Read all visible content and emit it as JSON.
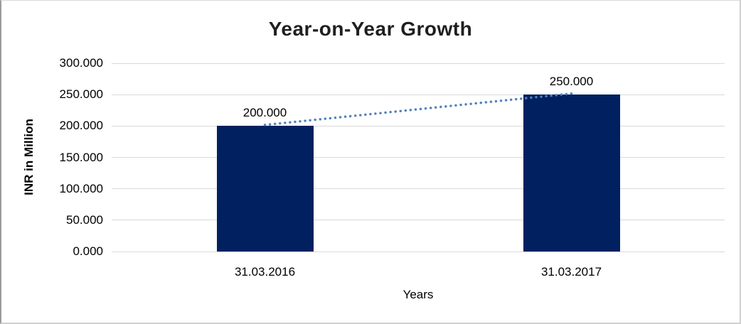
{
  "chart_data": {
    "type": "bar",
    "title": "Year-on-Year Growth",
    "xlabel": "Years",
    "ylabel": "INR in Million",
    "categories": [
      "31.03.2016",
      "31.03.2017"
    ],
    "values": [
      200000,
      250000
    ],
    "data_labels": [
      "200.000",
      "250.000"
    ],
    "y_ticks": [
      {
        "value": 0,
        "label": "0.000"
      },
      {
        "value": 50000,
        "label": "50.000"
      },
      {
        "value": 100000,
        "label": "100.000"
      },
      {
        "value": 150000,
        "label": "150.000"
      },
      {
        "value": 200000,
        "label": "200.000"
      },
      {
        "value": 250000,
        "label": "250.000"
      },
      {
        "value": 300000,
        "label": "300.000"
      }
    ],
    "ylim": [
      0,
      300000
    ],
    "grid": true,
    "legend": "none",
    "trendline": {
      "type": "linear",
      "style": "dotted"
    },
    "colors": {
      "bar": "#002060",
      "trendline": "#4f81bd",
      "gridline": "#d9d9d9",
      "title_text": "#1f1f1f",
      "axis_text": "#000000"
    }
  }
}
